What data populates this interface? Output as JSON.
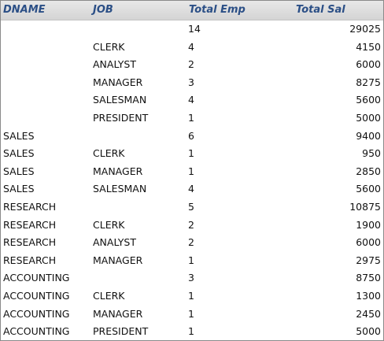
{
  "headers": {
    "dname": "DNAME",
    "job": "JOB",
    "total_emp": "Total Emp",
    "total_sal": "Total Sal"
  },
  "rows": [
    {
      "dname": "",
      "job": "",
      "total_emp": "14",
      "total_sal": "29025"
    },
    {
      "dname": "",
      "job": "CLERK",
      "total_emp": "4",
      "total_sal": "4150"
    },
    {
      "dname": "",
      "job": "ANALYST",
      "total_emp": "2",
      "total_sal": "6000"
    },
    {
      "dname": "",
      "job": "MANAGER",
      "total_emp": "3",
      "total_sal": "8275"
    },
    {
      "dname": "",
      "job": "SALESMAN",
      "total_emp": "4",
      "total_sal": "5600"
    },
    {
      "dname": "",
      "job": "PRESIDENT",
      "total_emp": "1",
      "total_sal": "5000"
    },
    {
      "dname": "SALES",
      "job": "",
      "total_emp": "6",
      "total_sal": "9400"
    },
    {
      "dname": "SALES",
      "job": "CLERK",
      "total_emp": "1",
      "total_sal": "950"
    },
    {
      "dname": "SALES",
      "job": "MANAGER",
      "total_emp": "1",
      "total_sal": "2850"
    },
    {
      "dname": "SALES",
      "job": "SALESMAN",
      "total_emp": "4",
      "total_sal": "5600"
    },
    {
      "dname": "RESEARCH",
      "job": "",
      "total_emp": "5",
      "total_sal": "10875"
    },
    {
      "dname": "RESEARCH",
      "job": "CLERK",
      "total_emp": "2",
      "total_sal": "1900"
    },
    {
      "dname": "RESEARCH",
      "job": "ANALYST",
      "total_emp": "2",
      "total_sal": "6000"
    },
    {
      "dname": "RESEARCH",
      "job": "MANAGER",
      "total_emp": "1",
      "total_sal": "2975"
    },
    {
      "dname": "ACCOUNTING",
      "job": "",
      "total_emp": "3",
      "total_sal": "8750"
    },
    {
      "dname": "ACCOUNTING",
      "job": "CLERK",
      "total_emp": "1",
      "total_sal": "1300"
    },
    {
      "dname": "ACCOUNTING",
      "job": "MANAGER",
      "total_emp": "1",
      "total_sal": "2450"
    },
    {
      "dname": "ACCOUNTING",
      "job": "PRESIDENT",
      "total_emp": "1",
      "total_sal": "5000"
    }
  ]
}
